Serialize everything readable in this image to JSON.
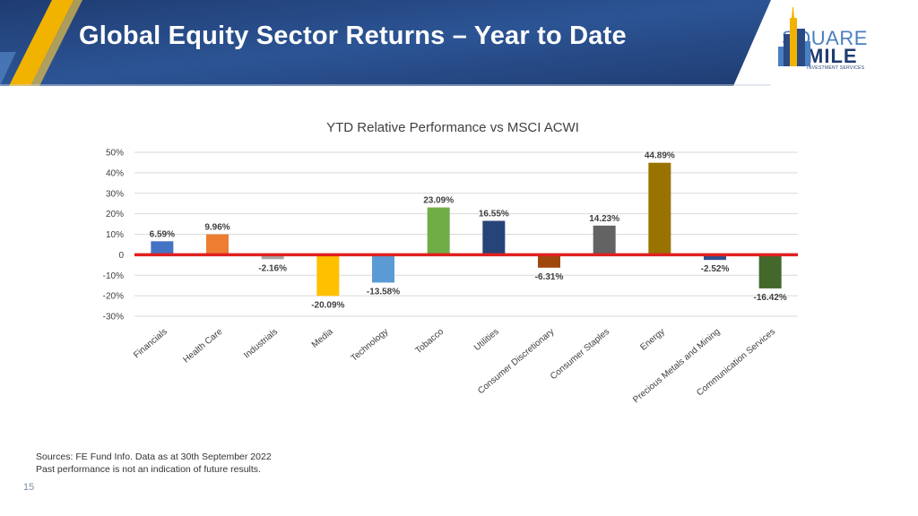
{
  "header": {
    "title": "Global Equity Sector Returns – Year to Date"
  },
  "logo": {
    "line1": "SQUARE",
    "line2": "MILE",
    "line3": "INVESTMENT SERVICES"
  },
  "footer": {
    "source_line1": "Sources: FE Fund Info. Data as at 30th September 2022",
    "source_line2": "Past performance is not an indication of future results.",
    "page_number": "15"
  },
  "colors": {
    "header_blue": "#2a4a85",
    "accent_gold": "#f2b300",
    "zero_line": "#e02020"
  },
  "chart_data": {
    "type": "bar",
    "title": "YTD Relative Performance vs MSCI ACWI",
    "xlabel": "",
    "ylabel": "",
    "ylim": [
      -30,
      50
    ],
    "yticks": [
      50,
      40,
      30,
      20,
      10,
      0,
      -10,
      -20,
      -30
    ],
    "ytick_labels": [
      "50%",
      "40%",
      "30%",
      "20%",
      "10%",
      "0",
      "-10%",
      "-20%",
      "-30%"
    ],
    "grid": true,
    "legend": "none",
    "categories": [
      "Financials",
      "Health Care",
      "Industrials",
      "Media",
      "Technology",
      "Tobacco",
      "Utilities",
      "Consumer Discretionary",
      "Consumer Staples",
      "Energy",
      "Precious Metals and Mining",
      "Communication Services"
    ],
    "values": [
      6.59,
      9.96,
      -2.16,
      -20.09,
      -13.58,
      23.09,
      16.55,
      -6.31,
      14.23,
      44.89,
      -2.52,
      -16.42
    ],
    "labels": [
      "6.59%",
      "9.96%",
      "-2.16%",
      "-20.09%",
      "-13.58%",
      "23.09%",
      "16.55%",
      "-6.31%",
      "14.23%",
      "44.89%",
      "-2.52%",
      "-16.42%"
    ],
    "bar_colors": [
      "#4472c4",
      "#ed7d31",
      "#a5a5a5",
      "#ffc000",
      "#5b9bd5",
      "#70ad47",
      "#264478",
      "#9e480e",
      "#636363",
      "#997300",
      "#2e4f8f",
      "#43682b"
    ]
  }
}
